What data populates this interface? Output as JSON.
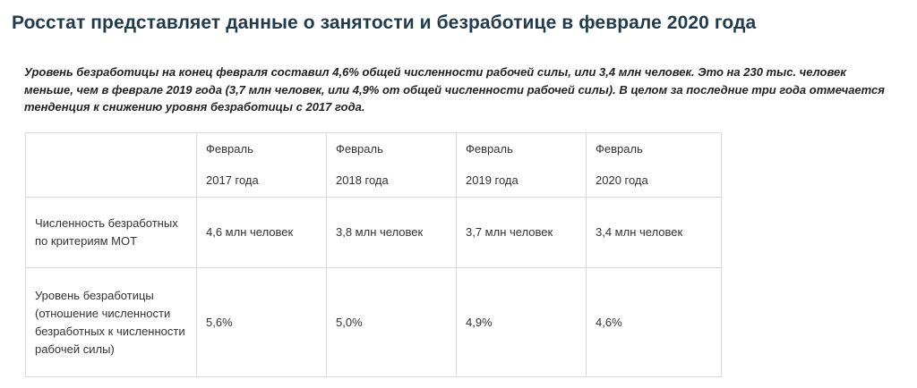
{
  "article": {
    "title": "Росстат представляет данные о занятости и безработице в феврале 2020 года",
    "lead": "Уровень безработицы на конец февраля составил 4,6% общей численности рабочей силы, или 3,4 млн человек. Это на 230 тыс. человек меньше, чем в феврале 2019 года (3,7 млн человек, или 4,9% от общей численности рабочей силы). В целом за последние три года отмечается тенденция к снижению уровня безработицы с 2017 года."
  },
  "table": {
    "columns": [
      {
        "month": "Февраль",
        "year": "2017 года"
      },
      {
        "month": "Февраль",
        "year": "2018 года"
      },
      {
        "month": "Февраль",
        "year": "2019 года"
      },
      {
        "month": "Февраль",
        "year": "2020 года"
      }
    ],
    "rows": [
      {
        "label": "Численность безработных по критериям МОТ",
        "values": [
          "4,6 млн человек",
          "3,8 млн человек",
          "3,7 млн человек",
          "3,4 млн человек"
        ]
      },
      {
        "label": "Уровень безработицы (отношение численности безработных к численности рабочей силы)",
        "values": [
          "5,6%",
          "5,0%",
          "4,9%",
          "4,6%"
        ]
      }
    ]
  }
}
